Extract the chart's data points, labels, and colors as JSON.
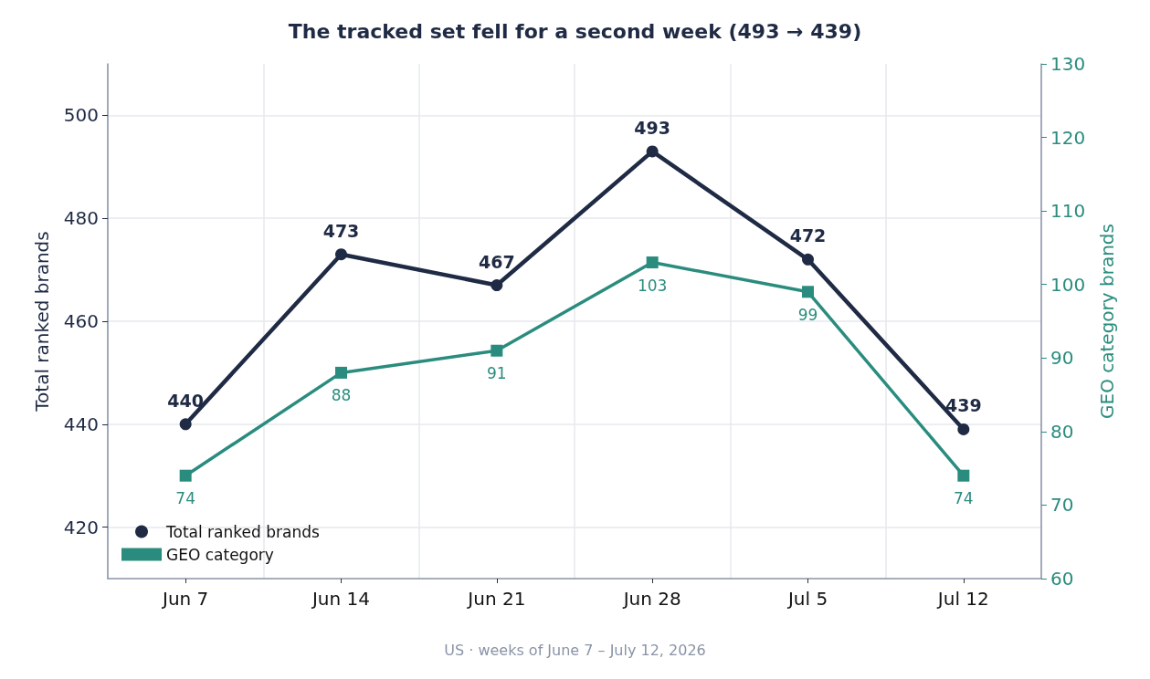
{
  "chart_data": {
    "type": "line",
    "title": "The tracked set fell for a second week (493 → 439)",
    "ylabel": "Total ranked brands",
    "y2label": "GEO category brands",
    "categories": [
      "Jun 7",
      "Jun 14",
      "Jun 21",
      "Jun 28",
      "Jul 5",
      "Jul 12"
    ],
    "series": [
      {
        "name": "Total ranked brands",
        "color": "#1f2a44",
        "values": [
          440,
          473,
          467,
          493,
          472,
          439
        ],
        "marker": "circle"
      },
      {
        "name": "GEO category",
        "color": "#2a8c7e",
        "values": [
          74,
          88,
          91,
          103,
          99,
          74
        ],
        "axis": "y2",
        "marker": "square"
      }
    ],
    "ylim": [
      410,
      510
    ],
    "yticks": [
      420,
      440,
      460,
      480,
      500
    ],
    "y2lim": [
      60,
      130
    ],
    "y2ticks": [
      60,
      70,
      80,
      90,
      100,
      110,
      120,
      130
    ],
    "grid": true,
    "legend": "bottom left",
    "data_labels": true,
    "line_style": "solid",
    "annotations": [
      "US · weeks of June 7 – July 12, 2026"
    ]
  }
}
